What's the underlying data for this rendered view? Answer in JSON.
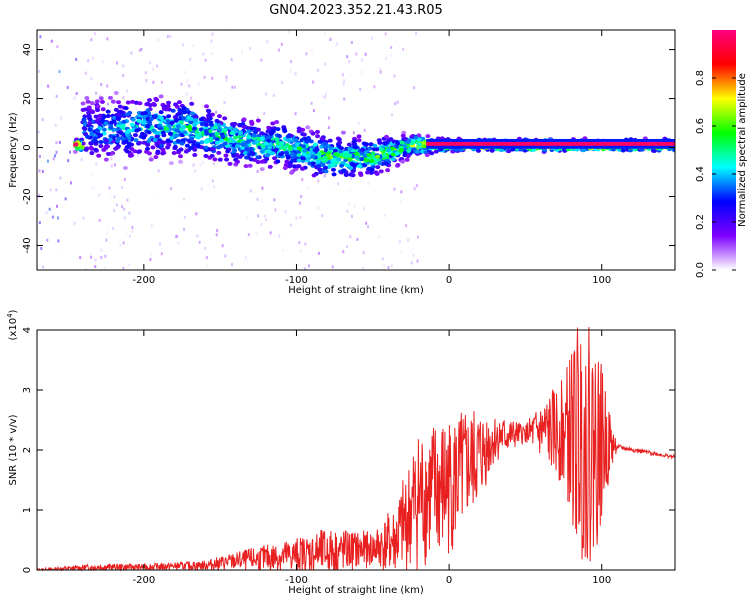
{
  "title": "GN04.2023.352.21.43.R05",
  "colors": {
    "snr_line": "#e82020",
    "frame": "#000000"
  },
  "chart_data": [
    {
      "type": "heatmap",
      "xlabel": "Height of straight line (km)",
      "ylabel": "Frequency (Hz)",
      "xlim": [
        -270,
        148
      ],
      "ylim": [
        -50,
        48
      ],
      "xticks": [
        -200,
        -100,
        0,
        100
      ],
      "yticks": [
        -40,
        -20,
        0,
        20,
        40
      ],
      "grid": false,
      "colorbar": {
        "label": "Normalized spectral amplitude",
        "ticks": [
          "0.0",
          "0.2",
          "0.4",
          "0.6",
          "0.8"
        ],
        "colormap": [
          "#ffffff",
          "#8000ff",
          "#0000ff",
          "#00ffff",
          "#00ff00",
          "#ffff00",
          "#ff0000",
          "#ff0080"
        ]
      },
      "ridge": {
        "description_points": [
          {
            "x": -240,
            "y": 7,
            "spread": 12,
            "amp": 0.35
          },
          {
            "x": -200,
            "y": 8,
            "spread": 12,
            "amp": 0.45
          },
          {
            "x": -170,
            "y": 8,
            "spread": 10,
            "amp": 0.5
          },
          {
            "x": -140,
            "y": 3,
            "spread": 9,
            "amp": 0.5
          },
          {
            "x": -110,
            "y": 1,
            "spread": 8,
            "amp": 0.5
          },
          {
            "x": -80,
            "y": -4,
            "spread": 8,
            "amp": 0.55
          },
          {
            "x": -50,
            "y": -4,
            "spread": 7,
            "amp": 0.55
          },
          {
            "x": -25,
            "y": 1,
            "spread": 4,
            "amp": 0.6
          },
          {
            "x": 0,
            "y": 1,
            "spread": 2,
            "amp": 0.85
          },
          {
            "x": 50,
            "y": 1,
            "spread": 2,
            "amp": 0.95
          },
          {
            "x": 148,
            "y": 1,
            "spread": 2,
            "amp": 0.95
          }
        ]
      }
    },
    {
      "type": "line",
      "xlabel": "Height of straight line (km)",
      "ylabel": "SNR (10 * v/v)",
      "scale_note": "(x10",
      "scale_exp": "4",
      "scale_close": ")",
      "xlim": [
        -270,
        148
      ],
      "ylim": [
        0,
        4.0
      ],
      "xticks": [
        -200,
        -100,
        0,
        100
      ],
      "yticks": [
        0,
        1,
        2,
        3,
        4
      ],
      "grid": false,
      "series": [
        {
          "envelope": [
            {
              "x": -270,
              "base": 0.0,
              "noise": 0.02
            },
            {
              "x": -230,
              "base": 0.05,
              "noise": 0.06
            },
            {
              "x": -200,
              "base": 0.05,
              "noise": 0.05
            },
            {
              "x": -160,
              "base": 0.08,
              "noise": 0.08
            },
            {
              "x": -140,
              "base": 0.15,
              "noise": 0.15
            },
            {
              "x": -100,
              "base": 0.25,
              "noise": 0.3
            },
            {
              "x": -80,
              "base": 0.3,
              "noise": 0.4
            },
            {
              "x": -50,
              "base": 0.35,
              "noise": 0.3
            },
            {
              "x": -35,
              "base": 0.5,
              "noise": 0.6
            },
            {
              "x": -20,
              "base": 1.2,
              "noise": 1.2
            },
            {
              "x": 0,
              "base": 1.4,
              "noise": 1.2
            },
            {
              "x": 20,
              "base": 1.9,
              "noise": 0.8
            },
            {
              "x": 30,
              "base": 2.2,
              "noise": 0.4
            },
            {
              "x": 50,
              "base": 2.28,
              "noise": 0.15
            },
            {
              "x": 60,
              "base": 2.3,
              "noise": 0.5
            },
            {
              "x": 75,
              "base": 2.3,
              "noise": 0.9
            },
            {
              "x": 85,
              "base": 2.2,
              "noise": 2.0
            },
            {
              "x": 95,
              "base": 2.1,
              "noise": 2.0
            },
            {
              "x": 105,
              "base": 2.1,
              "noise": 0.6
            },
            {
              "x": 110,
              "base": 2.05,
              "noise": 0.04
            },
            {
              "x": 148,
              "base": 1.88,
              "noise": 0.03
            }
          ]
        }
      ]
    }
  ]
}
